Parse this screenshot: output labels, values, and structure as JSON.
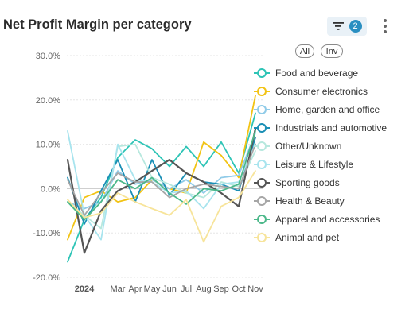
{
  "header": {
    "title": "Net Profit Margin per category",
    "filter_count": "2",
    "filter_icon": "filter-icon",
    "menu_icon": "more-vertical-icon"
  },
  "legend_controls": {
    "all_label": "All",
    "inv_label": "Inv"
  },
  "chart_data": {
    "type": "line",
    "title": "Net Profit Margin per category",
    "xlabel": "",
    "ylabel": "",
    "ylim": [
      -20,
      30
    ],
    "y_ticks": [
      "30.0%",
      "20.0%",
      "10.0%",
      "0.0%",
      "-10.0%",
      "-20.0%"
    ],
    "y_tick_values": [
      30,
      20,
      10,
      0,
      -10,
      -20
    ],
    "x_tick_labels": [
      "2024",
      "Mar",
      "Apr",
      "May",
      "Jun",
      "Jul",
      "Aug",
      "Sep",
      "Oct",
      "Nov"
    ],
    "x": [
      "2023-12",
      "2024-01",
      "2024-02",
      "2024-03",
      "2024-04",
      "2024-05",
      "2024-06",
      "2024-07",
      "2024-08",
      "2024-09",
      "2024-10",
      "2024-11"
    ],
    "grid": true,
    "legend_position": "right",
    "series": [
      {
        "name": "Food and beverage",
        "color": "#2ec4b6",
        "values": [
          -16.5,
          -7.0,
          -2.0,
          7.0,
          11.0,
          9.0,
          5.0,
          9.5,
          5.0,
          10.5,
          3.5,
          17.0
        ]
      },
      {
        "name": "Consumer electronics",
        "color": "#f2c314",
        "values": [
          -11.5,
          -2.0,
          -0.5,
          -3.0,
          -2.0,
          2.0,
          0.0,
          -1.0,
          10.5,
          7.5,
          2.5,
          21.0
        ]
      },
      {
        "name": "Home, garden and office",
        "color": "#90cbe8",
        "values": [
          -3.0,
          -4.5,
          -3.0,
          4.0,
          1.0,
          2.0,
          0.0,
          2.0,
          -1.0,
          2.5,
          3.0,
          12.5
        ]
      },
      {
        "name": "Industrials and automotive",
        "color": "#1b8fb5",
        "values": [
          2.5,
          -8.0,
          -0.5,
          6.5,
          -3.0,
          6.5,
          -1.5,
          3.5,
          1.5,
          1.0,
          -0.5,
          11.5
        ]
      },
      {
        "name": "Other/Unknown",
        "color": "#b7e8de",
        "values": [
          -3.0,
          -6.0,
          -9.0,
          9.5,
          10.0,
          2.5,
          1.0,
          -1.0,
          -2.0,
          1.5,
          0.5,
          8.5
        ]
      },
      {
        "name": "Leisure & Lifestyle",
        "color": "#a8e4ee",
        "values": [
          13.0,
          -6.0,
          -11.5,
          10.0,
          2.0,
          1.5,
          -1.0,
          -0.5,
          -4.5,
          1.0,
          1.5,
          10.0
        ]
      },
      {
        "name": "Sporting goods",
        "color": "#555555",
        "values": [
          6.5,
          -14.5,
          -5.0,
          -0.5,
          1.5,
          4.0,
          6.5,
          3.5,
          1.5,
          -1.0,
          -4.0,
          13.5
        ]
      },
      {
        "name": "Health & Beauty",
        "color": "#a6a6a6",
        "values": [
          2.0,
          -6.0,
          -1.0,
          3.5,
          1.5,
          1.5,
          -2.0,
          0.0,
          1.0,
          0.5,
          0.0,
          10.0
        ]
      },
      {
        "name": "Apparel and accessories",
        "color": "#4cb88a",
        "values": [
          -3.0,
          -7.0,
          -3.0,
          2.0,
          0.0,
          2.5,
          -1.0,
          -3.5,
          0.0,
          -0.5,
          1.0,
          13.0
        ]
      },
      {
        "name": "Animal and pet",
        "color": "#f7e49a",
        "values": [
          -2.5,
          -6.5,
          -5.5,
          -1.0,
          -3.0,
          -4.5,
          -6.0,
          -2.5,
          -12.0,
          -4.0,
          -2.0,
          4.0
        ]
      }
    ]
  }
}
